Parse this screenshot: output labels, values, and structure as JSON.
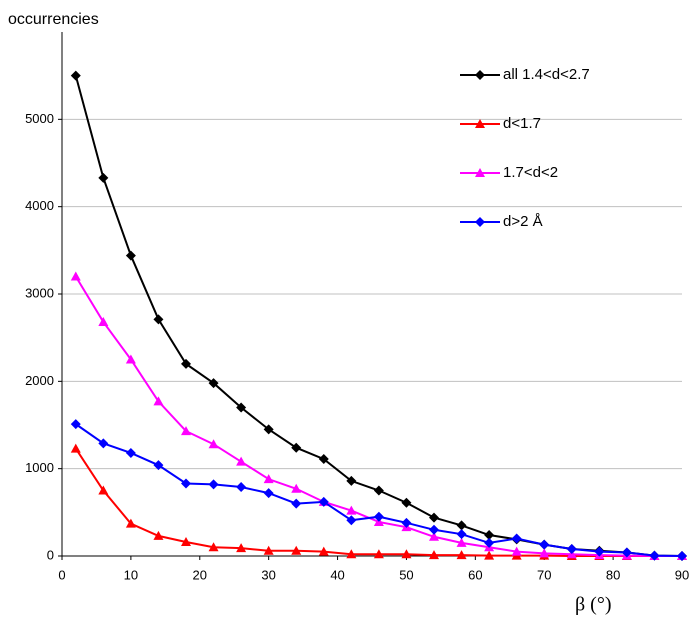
{
  "chart_data": {
    "type": "line",
    "y_label": "occurrencies",
    "x_label": "β   (°)",
    "x": [
      2,
      6,
      10,
      14,
      18,
      22,
      26,
      30,
      34,
      38,
      42,
      46,
      50,
      54,
      58,
      62,
      66,
      70,
      74,
      78,
      82,
      86,
      90
    ],
    "xlim": [
      0,
      90
    ],
    "xticks": [
      0,
      10,
      20,
      30,
      40,
      50,
      60,
      70,
      80,
      90
    ],
    "ylim": [
      0,
      6000
    ],
    "yticks": [
      0,
      1000,
      2000,
      3000,
      4000,
      5000
    ],
    "grid": true,
    "legend": "top-right",
    "series": [
      {
        "name": "all  1.4<d<2.7",
        "color": "#000000",
        "marker": "diamond",
        "values": [
          5500,
          4330,
          3440,
          2710,
          2200,
          1980,
          1700,
          1450,
          1240,
          1110,
          860,
          750,
          610,
          440,
          350,
          240,
          190,
          130,
          80,
          60,
          40,
          5,
          0
        ]
      },
      {
        "name": "d<1.7",
        "color": "#ff0000",
        "marker": "triangle",
        "values": [
          1230,
          750,
          370,
          230,
          160,
          100,
          90,
          60,
          60,
          50,
          20,
          20,
          20,
          10,
          10,
          5,
          5,
          5,
          0,
          0,
          0,
          0,
          0
        ]
      },
      {
        "name": "1.7<d<2",
        "color": "#ff00ff",
        "marker": "triangle",
        "values": [
          3200,
          2680,
          2250,
          1770,
          1430,
          1280,
          1080,
          880,
          770,
          620,
          520,
          390,
          330,
          220,
          150,
          100,
          50,
          30,
          20,
          10,
          5,
          0,
          0
        ]
      },
      {
        "name": "d>2 Å",
        "color": "#0000ff",
        "marker": "diamond",
        "values": [
          1510,
          1290,
          1180,
          1040,
          830,
          820,
          790,
          720,
          600,
          620,
          410,
          450,
          380,
          300,
          250,
          150,
          200,
          130,
          80,
          50,
          40,
          5,
          0
        ]
      }
    ]
  }
}
